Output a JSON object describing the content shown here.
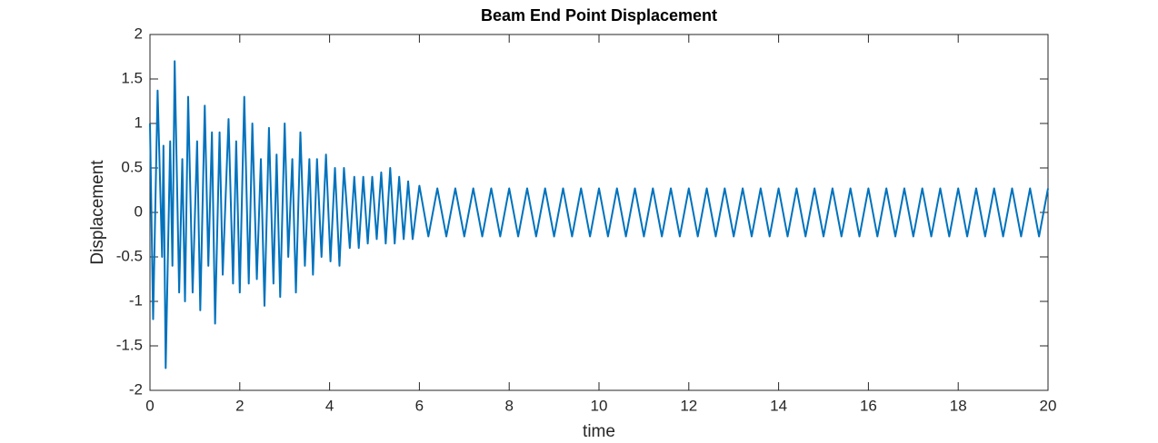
{
  "chart_data": {
    "type": "line",
    "title": "Beam End Point Displacement",
    "x_label": "time",
    "y_label": "Displacement",
    "xlim": [
      0,
      20
    ],
    "ylim": [
      -2,
      2
    ],
    "xticks": [
      0,
      2,
      4,
      6,
      8,
      10,
      12,
      14,
      16,
      18,
      20
    ],
    "yticks": [
      -2,
      -1.5,
      -1,
      -0.5,
      0,
      0.5,
      1,
      1.5,
      2
    ],
    "grid": false,
    "x": [
      0,
      0.07,
      0.17,
      0.27,
      0.3,
      0.35,
      0.45,
      0.5,
      0.55,
      0.65,
      0.72,
      0.78,
      0.85,
      0.95,
      1.05,
      1.12,
      1.22,
      1.3,
      1.38,
      1.45,
      1.55,
      1.62,
      1.75,
      1.85,
      1.92,
      2.0,
      2.1,
      2.2,
      2.28,
      2.38,
      2.47,
      2.55,
      2.65,
      2.75,
      2.82,
      2.9,
      3.0,
      3.08,
      3.17,
      3.25,
      3.35,
      3.45,
      3.55,
      3.63,
      3.72,
      3.82,
      3.92,
      4.02,
      4.12,
      4.22,
      4.32,
      4.45,
      4.55,
      4.65,
      4.75,
      4.85,
      4.95,
      5.05,
      5.15,
      5.25,
      5.35,
      5.45,
      5.55,
      5.65,
      5.75,
      5.85,
      6.0,
      6.2,
      6.4,
      6.6,
      6.8,
      7.0,
      7.2,
      7.4,
      7.6,
      7.8,
      8.0,
      8.2,
      8.4,
      8.6,
      8.8,
      9.0,
      9.2,
      9.4,
      9.6,
      9.8,
      10.0,
      10.2,
      10.4,
      10.6,
      10.8,
      11.0,
      11.2,
      11.4,
      11.6,
      11.8,
      12.0,
      12.2,
      12.4,
      12.6,
      12.8,
      13.0,
      13.2,
      13.4,
      13.6,
      13.8,
      14.0,
      14.2,
      14.4,
      14.6,
      14.8,
      15.0,
      15.2,
      15.4,
      15.6,
      15.8,
      16.0,
      16.2,
      16.4,
      16.6,
      16.8,
      17.0,
      17.2,
      17.4,
      17.6,
      17.8,
      18.0,
      18.2,
      18.4,
      18.6,
      18.8,
      19.0,
      19.2,
      19.4,
      19.6,
      19.8,
      20.0
    ],
    "series": [
      {
        "color": "#0072bd",
        "values": [
          1.0,
          -1.2,
          1.37,
          -0.5,
          0.75,
          -1.75,
          0.8,
          -0.6,
          1.7,
          -0.9,
          0.6,
          -1.0,
          1.3,
          -0.9,
          0.8,
          -1.1,
          1.2,
          -0.6,
          0.9,
          -1.25,
          0.9,
          -0.7,
          1.05,
          -0.8,
          0.8,
          -0.9,
          1.3,
          -0.8,
          1.0,
          -0.75,
          0.6,
          -1.05,
          0.95,
          -0.8,
          0.65,
          -0.95,
          1.0,
          -0.5,
          0.6,
          -0.9,
          0.9,
          -0.6,
          0.6,
          -0.7,
          0.6,
          -0.5,
          0.65,
          -0.55,
          0.5,
          -0.6,
          0.5,
          -0.4,
          0.4,
          -0.4,
          0.4,
          -0.35,
          0.4,
          -0.3,
          0.45,
          -0.35,
          0.5,
          -0.35,
          0.4,
          -0.3,
          0.35,
          -0.3,
          0.3,
          -0.27,
          0.27,
          -0.27,
          0.27,
          -0.27,
          0.27,
          -0.27,
          0.27,
          -0.27,
          0.27,
          -0.27,
          0.27,
          -0.27,
          0.27,
          -0.27,
          0.27,
          -0.27,
          0.27,
          -0.27,
          0.27,
          -0.27,
          0.27,
          -0.27,
          0.27,
          -0.27,
          0.27,
          -0.27,
          0.27,
          -0.27,
          0.27,
          -0.27,
          0.27,
          -0.27,
          0.27,
          -0.27,
          0.27,
          -0.27,
          0.27,
          -0.27,
          0.27,
          -0.27,
          0.27,
          -0.27,
          0.27,
          -0.27,
          0.27,
          -0.27,
          0.27,
          -0.27,
          0.27,
          -0.27,
          0.27,
          -0.27,
          0.27,
          -0.27,
          0.27,
          -0.27,
          0.27,
          -0.27,
          0.27,
          -0.27,
          0.27,
          -0.27,
          0.27,
          -0.27,
          0.27,
          -0.27,
          0.27,
          -0.27,
          0.27
        ]
      }
    ]
  }
}
